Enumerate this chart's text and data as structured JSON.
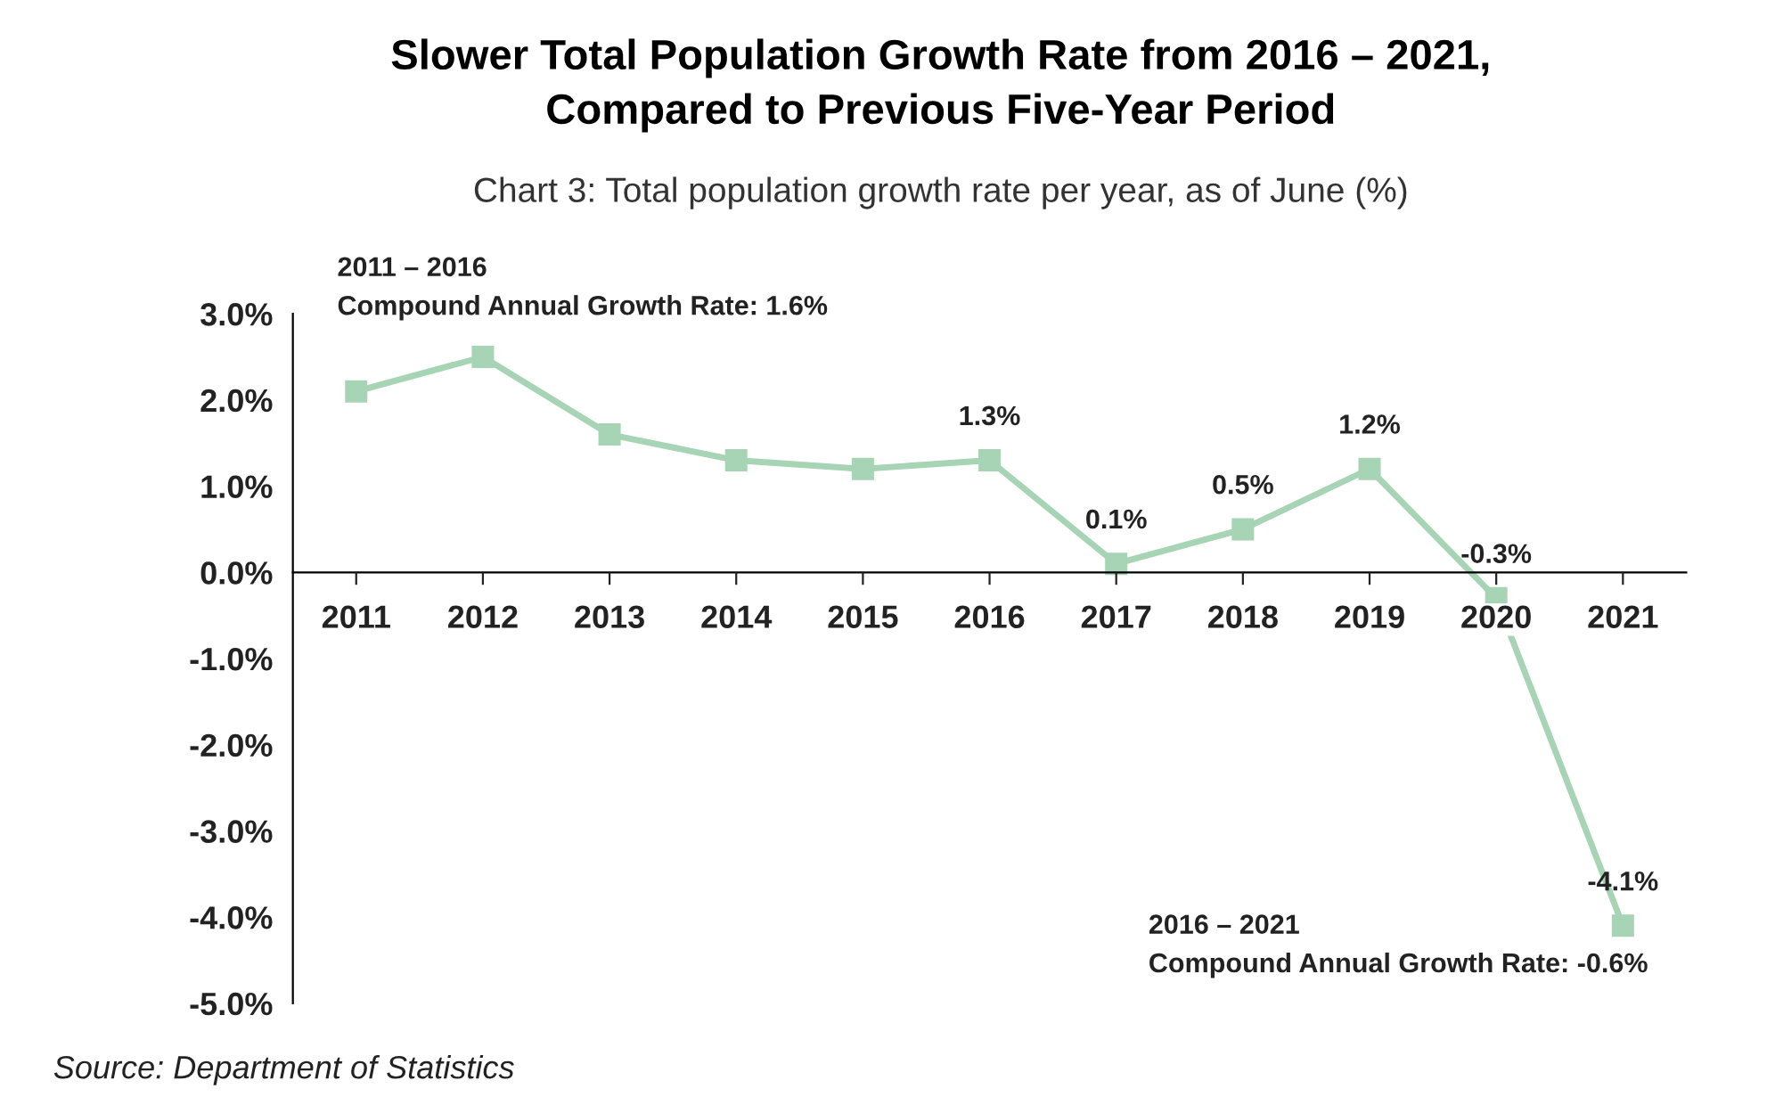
{
  "chart_data": {
    "type": "line",
    "title": "Slower Total Population Growth Rate from 2016 – 2021,\nCompared to Previous Five-Year Period",
    "subtitle": "Chart 3: Total population growth rate per year, as of June (%)",
    "categories": [
      "2011",
      "2012",
      "2013",
      "2014",
      "2015",
      "2016",
      "2017",
      "2018",
      "2019",
      "2020",
      "2021"
    ],
    "series": [
      {
        "color": "#a6d4b4",
        "values": [
          2.1,
          2.5,
          1.6,
          1.3,
          1.2,
          1.3,
          0.1,
          0.5,
          1.2,
          -0.3,
          -4.1
        ],
        "value_labels": [
          null,
          null,
          null,
          null,
          null,
          "1.3%",
          "0.1%",
          "0.5%",
          "1.2%",
          "-0.3%",
          "-4.1%"
        ]
      }
    ],
    "ylim": [
      -5,
      3
    ],
    "yticks": [
      {
        "value": -5,
        "label": "-5.0%"
      },
      {
        "value": -4,
        "label": "-4.0%"
      },
      {
        "value": -3,
        "label": "-3.0%"
      },
      {
        "value": -2,
        "label": "-2.0%"
      },
      {
        "value": -1,
        "label": "-1.0%"
      },
      {
        "value": 0,
        "label": "0.0%"
      },
      {
        "value": 1,
        "label": "1.0%"
      },
      {
        "value": 2,
        "label": "2.0%"
      },
      {
        "value": 3,
        "label": "3.0%"
      }
    ],
    "marker": "square",
    "line_style": "solid",
    "grid": false,
    "legend": false,
    "annotations": [
      "2011 – 2016",
      "Compound Annual Growth Rate: 1.6%",
      "2016 – 2021",
      "Compound Annual Growth Rate: -0.6%",
      "Source: Department of Statistics"
    ]
  }
}
